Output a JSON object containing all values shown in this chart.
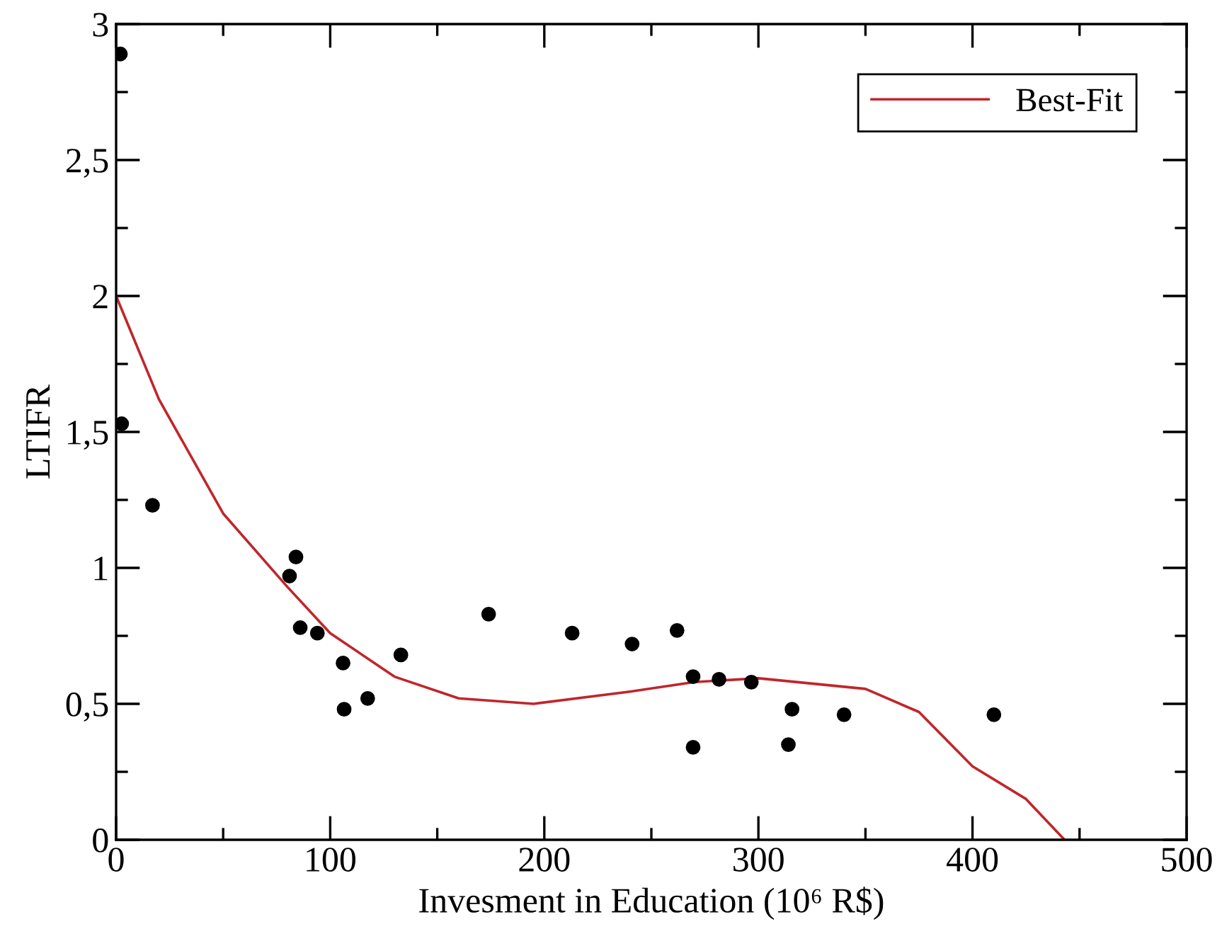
{
  "chart_data": {
    "type": "scatter",
    "xlabel": "Invesment in Education (10⁶ R$)",
    "ylabel": "LTIFR",
    "xlim": [
      0,
      500
    ],
    "ylim": [
      0,
      3
    ],
    "xticks": [
      0,
      {
        "value": 50,
        "label": null
      },
      100,
      {
        "value": 150,
        "label": null
      },
      200,
      {
        "value": 250,
        "label": null
      },
      300,
      {
        "value": 350,
        "label": null
      },
      400,
      {
        "value": 450,
        "label": null
      },
      500
    ],
    "yticks": [
      0,
      {
        "value": 0.25,
        "label": null
      },
      {
        "value": 0.5,
        "label": "0,5"
      },
      {
        "value": 0.75,
        "label": null
      },
      1,
      {
        "value": 1.25,
        "label": null
      },
      {
        "value": 1.5,
        "label": "1,5"
      },
      {
        "value": 1.75,
        "label": null
      },
      2,
      {
        "value": 2.25,
        "label": null
      },
      {
        "value": 2.5,
        "label": "2,5"
      },
      {
        "value": 2.75,
        "label": null
      },
      3
    ],
    "grid": false,
    "legend": "top right",
    "series": [
      {
        "color": "#000000",
        "marker": "circle",
        "x": [
          2,
          2.6,
          17,
          81,
          84,
          86,
          94,
          106,
          106.5,
          117.5,
          133,
          174,
          213,
          241,
          262,
          269.5,
          269.5,
          281.6,
          296.7,
          315.7,
          314,
          340,
          410
        ],
        "values": [
          2.89,
          1.53,
          1.23,
          0.97,
          1.04,
          0.78,
          0.76,
          0.65,
          0.48,
          0.52,
          0.68,
          0.83,
          0.76,
          0.72,
          0.77,
          0.6,
          0.34,
          0.59,
          0.58,
          0.48,
          0.35,
          0.46,
          0.46
        ]
      },
      {
        "type": "line",
        "name": "Best-Fit",
        "color": "#c0262b",
        "line_style": "solid",
        "marker": "none",
        "x": [
          0,
          20,
          50,
          80,
          100,
          130,
          160,
          195,
          240,
          270,
          300,
          350,
          375,
          400,
          425,
          443
        ],
        "values": [
          2.0,
          1.62,
          1.2,
          0.93,
          0.76,
          0.6,
          0.52,
          0.5,
          0.545,
          0.58,
          0.594,
          0.555,
          0.47,
          0.27,
          0.15,
          0
        ]
      }
    ]
  }
}
